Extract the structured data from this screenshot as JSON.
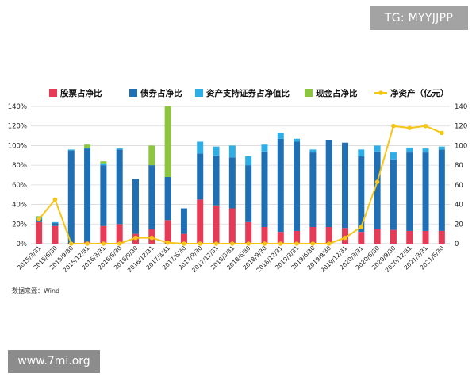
{
  "watermarks": {
    "top": "TG: MYYJJPP",
    "bottom": "www.7mi.org"
  },
  "source_note": "数据来源：Wind",
  "colors": {
    "stock": "#e63a57",
    "bond": "#1f6fb5",
    "abs": "#2eaee6",
    "cash": "#8cc63f",
    "net": "#f5c518",
    "grid": "#d9d9d9"
  },
  "chart_data": {
    "type": "bar",
    "stacked": true,
    "categories": [
      "2015/3/31",
      "2015/6/30",
      "2015/9/30",
      "2015/12/31",
      "2016/3/31",
      "2016/6/30",
      "2016/9/30",
      "2016/12/31",
      "2017/3/31",
      "2017/6/30",
      "2017/9/30",
      "2017/12/31",
      "2018/3/31",
      "2018/6/30",
      "2018/9/30",
      "2018/12/31",
      "2019/3/31",
      "2019/6/30",
      "2019/9/30",
      "2019/12/31",
      "2020/3/31",
      "2020/6/30",
      "2020/9/30",
      "2020/12/31",
      "2021/3/31",
      "2021/6/30"
    ],
    "series": [
      {
        "name": "股票占净比",
        "axis": "left",
        "values": [
          22,
          18,
          0,
          2,
          18,
          20,
          10,
          15,
          24,
          10,
          45,
          39,
          36,
          22,
          17,
          12,
          13,
          17,
          17,
          16,
          12,
          15,
          14,
          13,
          13,
          13
        ]
      },
      {
        "name": "债券占净比",
        "axis": "left",
        "values": [
          3,
          3,
          95,
          95,
          62,
          76,
          56,
          65,
          44,
          26,
          47,
          51,
          52,
          58,
          77,
          95,
          91,
          76,
          89,
          87,
          77,
          79,
          72,
          80,
          80,
          83
        ]
      },
      {
        "name": "资产支持证券占净值比",
        "axis": "left",
        "values": [
          2,
          1,
          1,
          1,
          2,
          1,
          0,
          0,
          0,
          0,
          12,
          9,
          12,
          9,
          7,
          6,
          3,
          3,
          0,
          0,
          7,
          6,
          7,
          5,
          4,
          3
        ]
      },
      {
        "name": "现金占净比",
        "axis": "left",
        "values": [
          1,
          0,
          0,
          3,
          2,
          0,
          0,
          20,
          72,
          0,
          0,
          0,
          0,
          0,
          0,
          0,
          0,
          0,
          0,
          0,
          0,
          0,
          0,
          0,
          0,
          0
        ]
      },
      {
        "name": "净资产（亿元）",
        "type": "line",
        "axis": "right",
        "values": [
          25,
          45,
          0,
          0,
          0,
          0,
          6,
          6,
          1,
          0,
          0,
          0,
          0,
          0,
          0,
          0,
          0,
          0,
          0,
          6,
          17,
          63,
          120,
          118,
          120,
          113
        ]
      }
    ],
    "ylim_left": [
      0,
      140
    ],
    "yticks_left": [
      "0%",
      "20%",
      "40%",
      "60%",
      "80%",
      "100%",
      "120%",
      "140%"
    ],
    "ylim_right": [
      0,
      140
    ],
    "yticks_right": [
      "0",
      "20",
      "40",
      "60",
      "80",
      "100",
      "120",
      "140"
    ],
    "legend_position": "top",
    "grid": true
  }
}
